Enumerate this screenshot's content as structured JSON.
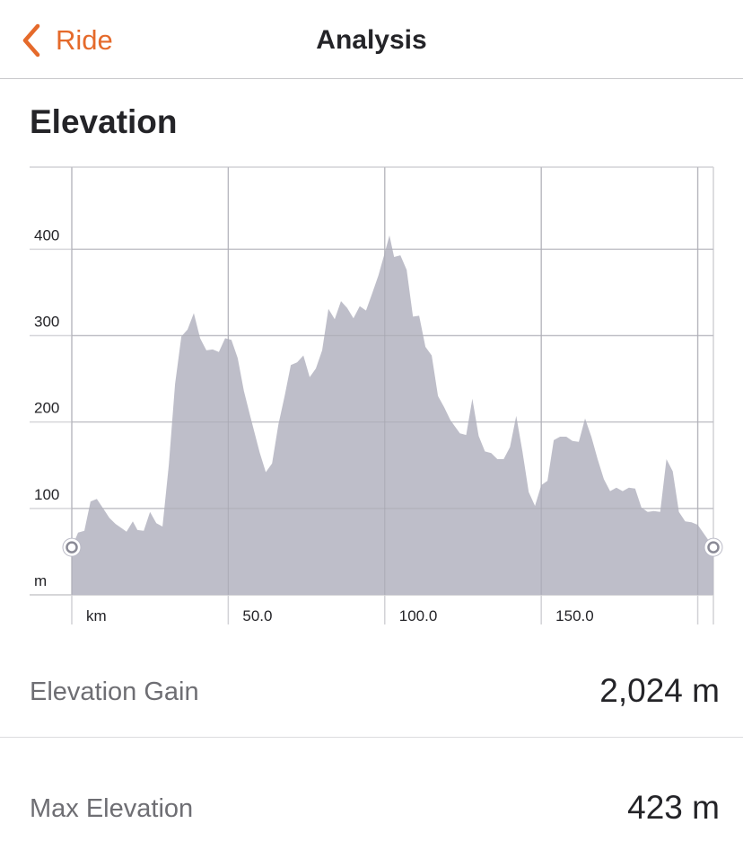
{
  "nav": {
    "back_label": "Ride",
    "title": "Analysis"
  },
  "section": {
    "title": "Elevation"
  },
  "stats": {
    "gain_label": "Elevation Gain",
    "gain_value": "2,024 m",
    "max_label": "Max Elevation",
    "max_value": "423 m"
  },
  "colors": {
    "accent": "#e56a2b",
    "area_fill": "#babac6"
  },
  "chart_data": {
    "type": "area",
    "title": "",
    "xlabel": "km",
    "ylabel": "m",
    "xlim": [
      0,
      205
    ],
    "ylim": [
      0,
      495
    ],
    "x_ticks": [
      0,
      50,
      100,
      150,
      200
    ],
    "x_tick_labels": [
      "km",
      "50.0",
      "100.0",
      "150.0",
      ""
    ],
    "y_ticks": [
      0,
      100,
      200,
      300,
      400
    ],
    "y_tick_labels": [
      "m",
      "100",
      "200",
      "300",
      "400"
    ],
    "grid": true,
    "legend": "none",
    "series": [
      {
        "values": [
          [
            0,
            55
          ],
          [
            2,
            72
          ],
          [
            4,
            74
          ],
          [
            6,
            108
          ],
          [
            8,
            111
          ],
          [
            10,
            100
          ],
          [
            12,
            89
          ],
          [
            14,
            82
          ],
          [
            16,
            77
          ],
          [
            17.5,
            73
          ],
          [
            19.5,
            85
          ],
          [
            21,
            75
          ],
          [
            23,
            74
          ],
          [
            25,
            96
          ],
          [
            27,
            83
          ],
          [
            29,
            79
          ],
          [
            31,
            150
          ],
          [
            33,
            244
          ],
          [
            35,
            299
          ],
          [
            37,
            307
          ],
          [
            39,
            326
          ],
          [
            41,
            297
          ],
          [
            43,
            283
          ],
          [
            45,
            284
          ],
          [
            47,
            281
          ],
          [
            49,
            297
          ],
          [
            51,
            295
          ],
          [
            53,
            274
          ],
          [
            55,
            236
          ],
          [
            57,
            207
          ],
          [
            60,
            165
          ],
          [
            62,
            142
          ],
          [
            64,
            152
          ],
          [
            66,
            197
          ],
          [
            68,
            230
          ],
          [
            70,
            266
          ],
          [
            72,
            269
          ],
          [
            74,
            277
          ],
          [
            76,
            252
          ],
          [
            78,
            262
          ],
          [
            80,
            283
          ],
          [
            82,
            331
          ],
          [
            84,
            319
          ],
          [
            86,
            340
          ],
          [
            88,
            332
          ],
          [
            90,
            320
          ],
          [
            92,
            334
          ],
          [
            94,
            329
          ],
          [
            96,
            349
          ],
          [
            98,
            370
          ],
          [
            100,
            396
          ],
          [
            101.5,
            416
          ],
          [
            103,
            391
          ],
          [
            105,
            393
          ],
          [
            107,
            376
          ],
          [
            109,
            322
          ],
          [
            111,
            323
          ],
          [
            113,
            287
          ],
          [
            115,
            277
          ],
          [
            117,
            230
          ],
          [
            119,
            217
          ],
          [
            121,
            202
          ],
          [
            124,
            187
          ],
          [
            126,
            185
          ],
          [
            128,
            227
          ],
          [
            130,
            184
          ],
          [
            132,
            166
          ],
          [
            134,
            164
          ],
          [
            136,
            157
          ],
          [
            138,
            157
          ],
          [
            140,
            171
          ],
          [
            142,
            207
          ],
          [
            144,
            166
          ],
          [
            146,
            119
          ],
          [
            148,
            103
          ],
          [
            150,
            127
          ],
          [
            152,
            132
          ],
          [
            154,
            179
          ],
          [
            156,
            183
          ],
          [
            158,
            183
          ],
          [
            160,
            178
          ],
          [
            162,
            177
          ],
          [
            164,
            204
          ],
          [
            166,
            183
          ],
          [
            168,
            157
          ],
          [
            170,
            134
          ],
          [
            172,
            120
          ],
          [
            174,
            124
          ],
          [
            176,
            120
          ],
          [
            178,
            124
          ],
          [
            180,
            123
          ],
          [
            182,
            101
          ],
          [
            184,
            96
          ],
          [
            186,
            97
          ],
          [
            188,
            96
          ],
          [
            190,
            157
          ],
          [
            192,
            143
          ],
          [
            194,
            96
          ],
          [
            196,
            85
          ],
          [
            198,
            84
          ],
          [
            200,
            81
          ],
          [
            205,
            55
          ]
        ]
      }
    ]
  }
}
